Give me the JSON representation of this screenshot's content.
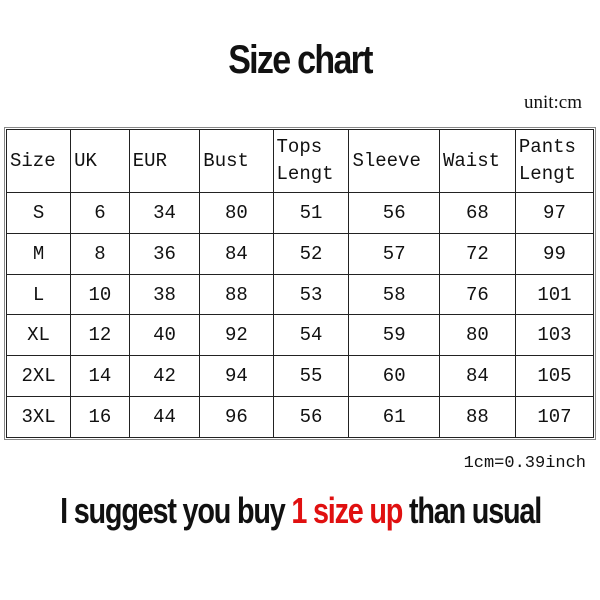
{
  "title": "Size chart",
  "unit": "unit:cm",
  "table": {
    "headers": [
      "Size",
      "UK",
      "EUR",
      "Bust",
      "Tops Lengt",
      "Sleeve",
      "Waist",
      "Pants Lengt"
    ],
    "rows": [
      [
        "S",
        "6",
        "34",
        "80",
        "51",
        "56",
        "68",
        "97"
      ],
      [
        "M",
        "8",
        "36",
        "84",
        "52",
        "57",
        "72",
        "99"
      ],
      [
        "L",
        "10",
        "38",
        "88",
        "53",
        "58",
        "76",
        "101"
      ],
      [
        "XL",
        "12",
        "40",
        "92",
        "54",
        "59",
        "80",
        "103"
      ],
      [
        "2XL",
        "14",
        "42",
        "94",
        "55",
        "60",
        "84",
        "105"
      ],
      [
        "3XL",
        "16",
        "44",
        "96",
        "56",
        "61",
        "88",
        "107"
      ]
    ]
  },
  "conversion": "1cm=0.39inch",
  "suggestion": {
    "before": "I suggest you buy ",
    "highlight": "1 size up",
    "after": " than usual",
    "highlight_color": "#e01010"
  }
}
